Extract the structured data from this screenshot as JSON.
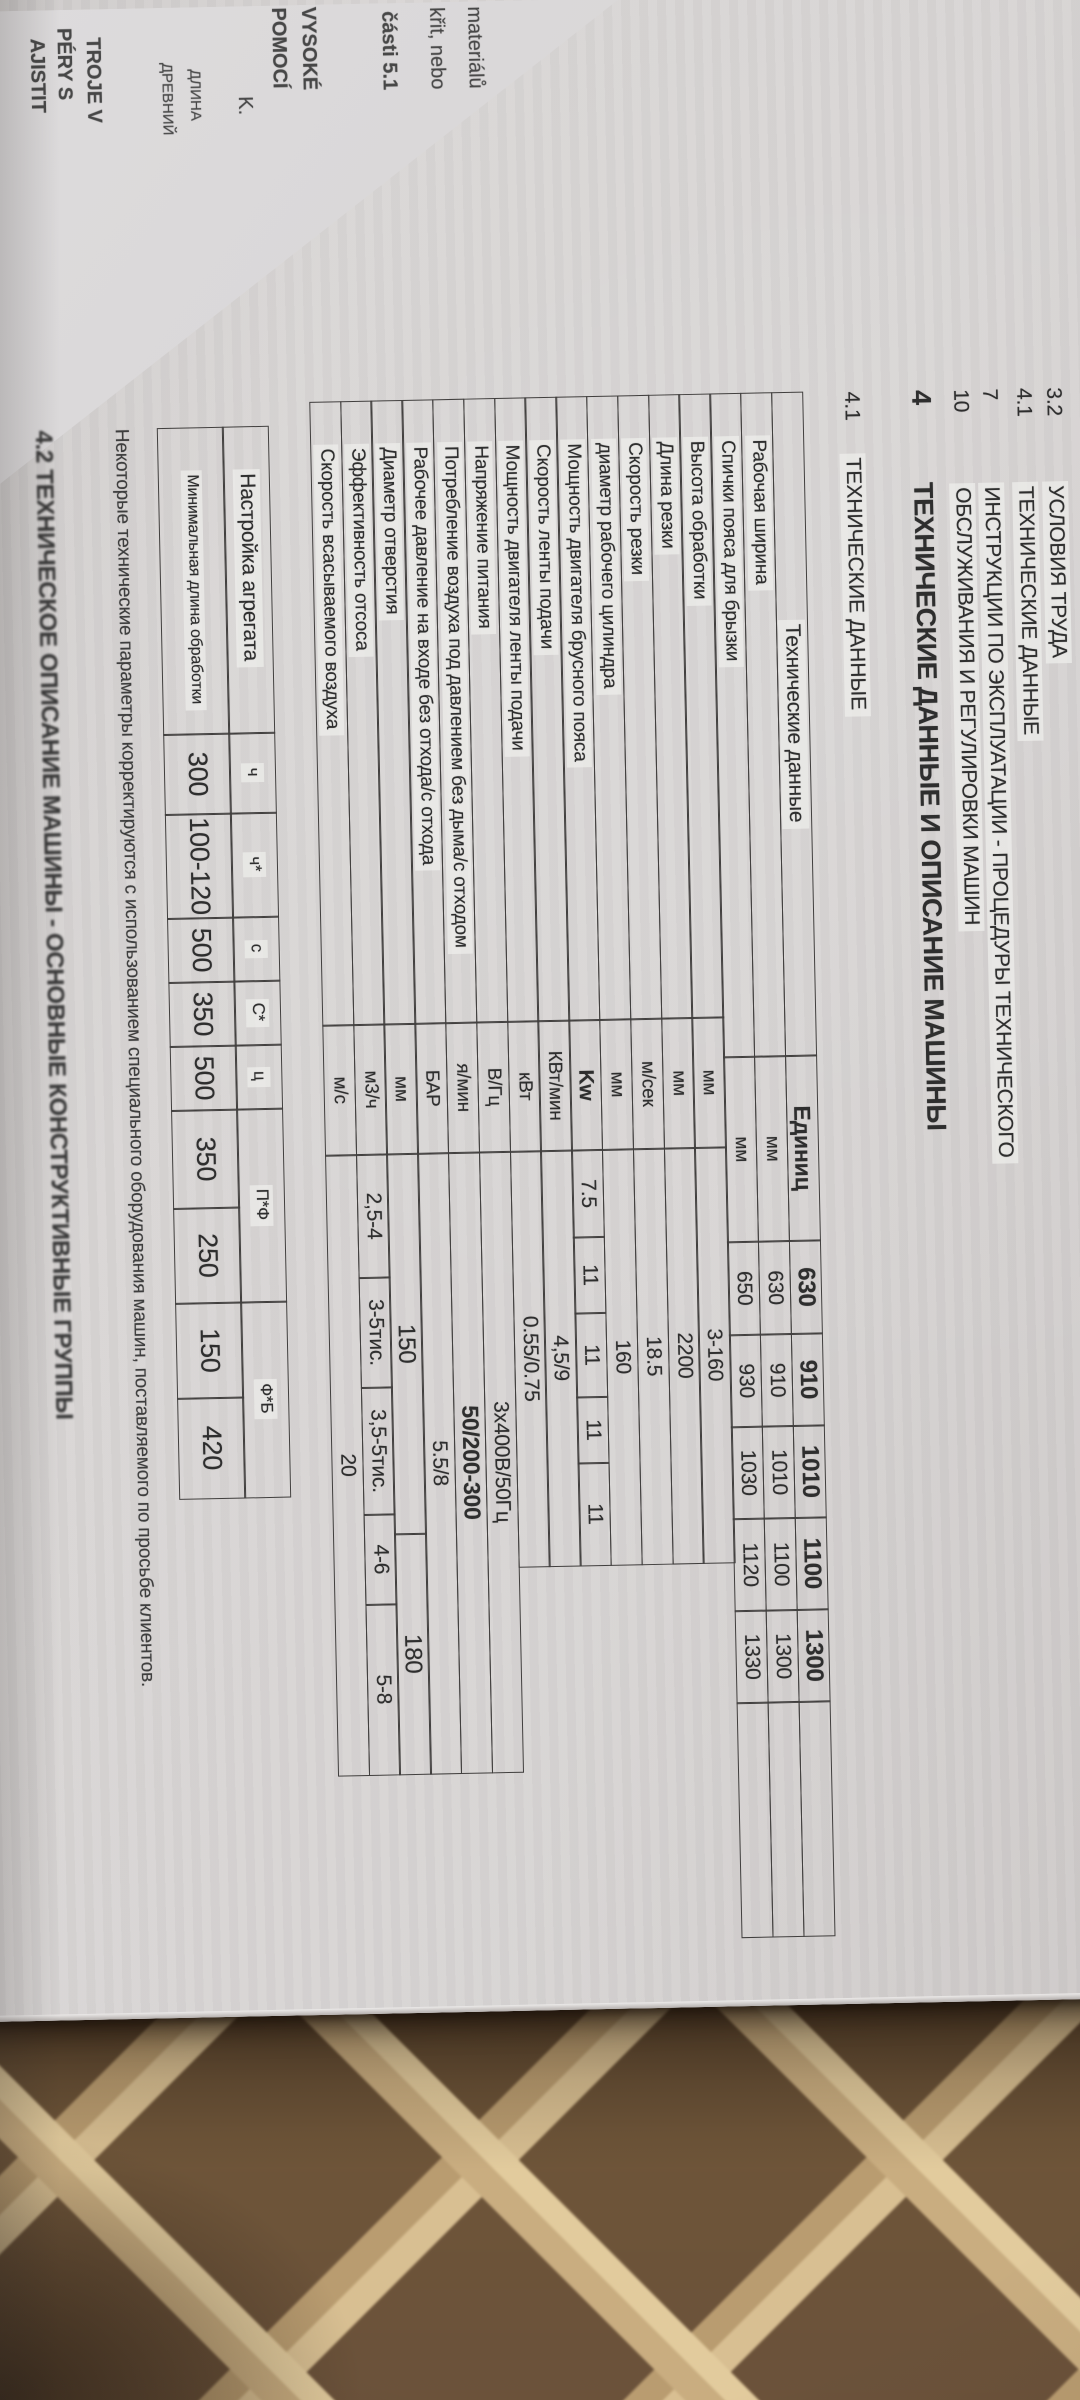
{
  "colors": {
    "paper": "#d6d3d2",
    "ink": "#2e2e2e",
    "table_line": "#413f3e",
    "wicker_strip": "#c9ad80",
    "wicker_dark": "#54402c"
  },
  "facing_page": {
    "fragments": [
      "materiálů",
      "křit, nebo",
      "části  5.1",
      "VYSOKÉ",
      "POMOCÍ",
      "K.",
      "ДЛИНА",
      "ДРЕВНИЙ",
      "TROJE V",
      "PÉRY S",
      "AJISTIT"
    ]
  },
  "toc": {
    "entries": [
      {
        "num": "3.2",
        "title": "УСЛОВИЯ ТРУДА"
      },
      {
        "num": "4.1",
        "title": "ТЕХНИЧЕСКИЕ ДАННЫЕ"
      },
      {
        "num": "7",
        "title": "ИНСТРУКЦИИ ПО ЭКСПЛУАТАЦИИ - ПРОЦЕДУРЫ ТЕХНИЧЕСКОГО"
      },
      {
        "num": "10",
        "title": "ОБСЛУЖИВАНИЯ И РЕГУЛИРОВКИ МАШИН"
      }
    ]
  },
  "headings": {
    "section_num": "4",
    "section_title": "ТЕХНИЧЕСКИЕ ДАННЫЕ И ОПИСАНИЕ МАШИНЫ",
    "sub_num": "4.1",
    "sub_title": "ТЕХНИЧЕСКИЕ ДАННЫЕ",
    "description_heading": "4.2 ТЕХНИЧЕСКОЕ ОПИСАНИЕ МАШИНЫ - ОСНОВНЫЕ КОНСТРУКТИВНЫЕ ГРУППЫ"
  },
  "main_table": {
    "header": {
      "label": "Технические данные",
      "unit": "Единиц",
      "cells": [
        "630",
        "910",
        "1010",
        "1100",
        "1300"
      ]
    },
    "rows": [
      {
        "label": "Рабочая ширина",
        "unit": "мм",
        "cells": [
          "630",
          "910",
          "1010",
          "1100",
          "1300"
        ],
        "sec": 1
      },
      {
        "label": "Спички пояса для брызки",
        "unit": "мм",
        "cells": [
          "650",
          "930",
          "1030",
          "1120",
          "1330"
        ],
        "sec": 1
      },
      {
        "label": "Высота обработки",
        "unit": "мм",
        "merged": "3-160",
        "sec": 2
      },
      {
        "label": "Длина резки",
        "unit": "мм",
        "merged": "2200",
        "sec": 2
      },
      {
        "label": "Скорость резки",
        "unit": "м/сек",
        "merged": "18.5",
        "sec": 2
      },
      {
        "label": "диаметр рабочего цилиндра",
        "unit": "мм",
        "merged": "160",
        "sec": 2
      },
      {
        "label": "Мощность двигателя брусного пояса",
        "unit": "Kw",
        "unit_bold": true,
        "cells": [
          "7.5",
          "11",
          "11",
          "11",
          "11"
        ],
        "sec": 2,
        "cells_x": "r7cells"
      },
      {
        "label": "Скорость ленты подачи",
        "unit": "КВт/мин",
        "merged": "4,5/9",
        "sec": 2
      },
      {
        "label": "Мощность двигателя ленты подачи",
        "unit": "кВт",
        "merged": "0.55/0.75",
        "sec": 2
      },
      {
        "label": "Напряжение питания",
        "unit": "В/Гц",
        "merged": "3х400В/50Гц",
        "sec": 3
      },
      {
        "label": "Потребление воздуха под давлением без дыма/с отходом",
        "unit": "я/мин",
        "merged": "50/200-300",
        "merged_big": true,
        "sec": 3
      },
      {
        "label": "Рабочее давление на входе без отхода/с отхода",
        "unit": "БАР",
        "merged": "5.5/8",
        "sec": 3
      },
      {
        "label": "Диаметр отверстия",
        "unit": "мм",
        "pair": [
          "150",
          "180"
        ],
        "pair_big": true,
        "sec": 3
      },
      {
        "label": "Эффективность отсоса",
        "unit": "м3/ч",
        "cells": [
          "2,5-4",
          "3-5тис.",
          "3,5-5тис.",
          "4-6",
          "5-8"
        ],
        "sec": 3,
        "cells_x": "r14cells"
      },
      {
        "label": "Скорость всасываемого воздуха",
        "unit": "м/с",
        "merged": "20",
        "sec": 3
      }
    ]
  },
  "settings_table": {
    "title": "Настройка агрегата",
    "row_label": "Минимальная длина обработки",
    "columns": [
      {
        "code": "ч",
        "cells": [
          "300"
        ]
      },
      {
        "code": "ч*",
        "cells": [
          "100-120"
        ]
      },
      {
        "code": "с",
        "cells": [
          "500"
        ]
      },
      {
        "code": "С*",
        "cells": [
          "350"
        ]
      },
      {
        "code": "ц",
        "cells": [
          "500"
        ]
      },
      {
        "code": "П*Ф",
        "cells": [
          "350",
          "250"
        ]
      },
      {
        "code": "Ф*Б",
        "cells": [
          "150",
          "420"
        ]
      }
    ]
  },
  "note": "Некоторые технические параметры корректируются с использованием специального оборудования машин, поставляемого по просьбе клиентов."
}
